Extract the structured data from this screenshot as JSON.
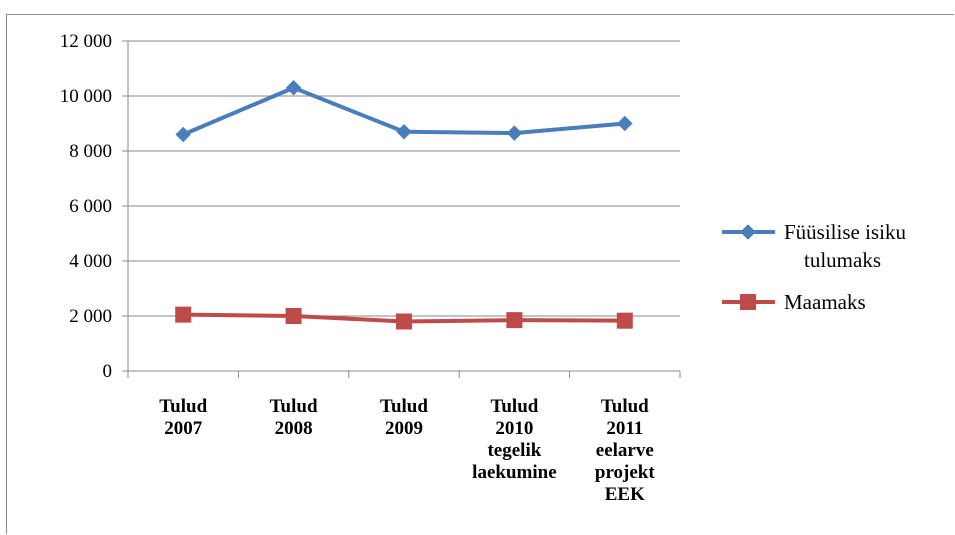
{
  "chart_data": {
    "type": "line",
    "categories": [
      [
        "Tulud",
        "2007"
      ],
      [
        "Tulud",
        "2008"
      ],
      [
        "Tulud",
        "2009"
      ],
      [
        "Tulud",
        "2010",
        "tegelik",
        "laekumine"
      ],
      [
        "Tulud",
        "2011",
        "eelarve",
        "projekt",
        "EEK"
      ]
    ],
    "ylim": [
      0,
      12000
    ],
    "yticks": [
      0,
      2000,
      4000,
      6000,
      8000,
      10000,
      12000
    ],
    "ytick_labels": [
      "0",
      "2 000",
      "4 000",
      "6 000",
      "8 000",
      "10 000",
      "12 000"
    ],
    "grid": true,
    "legend_position": "right",
    "series": [
      {
        "name_lines": [
          "Füüsilise isiku",
          "tulumaks"
        ],
        "color": "#4a7ebb",
        "marker": "diamond",
        "values": [
          8600,
          10300,
          8700,
          8650,
          9000
        ]
      },
      {
        "name_lines": [
          "Maamaks"
        ],
        "color": "#be4b48",
        "marker": "square",
        "values": [
          2050,
          2000,
          1800,
          1850,
          1830
        ]
      }
    ]
  }
}
